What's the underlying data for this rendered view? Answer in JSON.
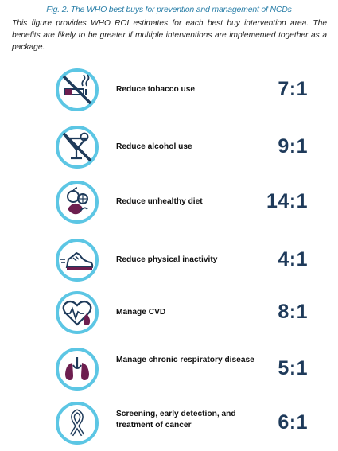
{
  "caption": "Fig. 2. The WHO best buys for prevention and management of NCDs",
  "intro": "This figure provides WHO ROI estimates for each best buy intervention area.  The benefits are likely to be greater if multiple interventions are implemented together as a package.",
  "items": [
    {
      "label": "Reduce tobacco use",
      "ratio": "7:1",
      "icon": "no-smoking-icon"
    },
    {
      "label": "Reduce alcohol use",
      "ratio": "9:1",
      "icon": "no-alcohol-icon"
    },
    {
      "label": "Reduce unhealthy diet",
      "ratio": "14:1",
      "icon": "healthy-food-icon"
    },
    {
      "label": "Reduce physical inactivity",
      "ratio": "4:1",
      "icon": "running-shoe-icon"
    },
    {
      "label": "Manage CVD",
      "ratio": "8:1",
      "icon": "heart-pulse-icon"
    },
    {
      "label": "Manage chronic respiratory disease",
      "ratio": "5:1",
      "icon": "lungs-icon"
    },
    {
      "label": "Screening, early detection, and treatment of cancer",
      "ratio": "6:1",
      "icon": "cancer-ribbon-icon"
    }
  ],
  "colors": {
    "ring": "#5cc6e4",
    "navy": "#1e3a5a",
    "purple": "#6d1e4f",
    "caption": "#2a7fa8"
  }
}
